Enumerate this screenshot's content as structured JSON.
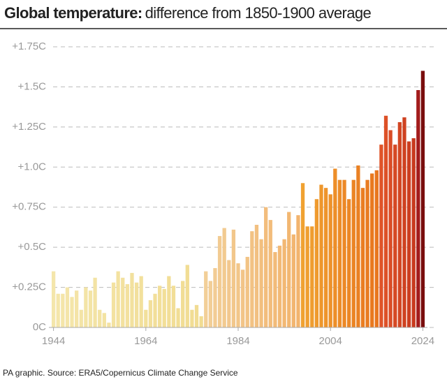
{
  "chart_data": {
    "type": "bar",
    "title": "Global temperature:",
    "subtitle": "difference from 1850-1900 average",
    "source": "PA graphic. Source: ERA5/Copernicus Climate Change Service",
    "x": [
      1944,
      1945,
      1946,
      1947,
      1948,
      1949,
      1950,
      1951,
      1952,
      1953,
      1954,
      1955,
      1956,
      1957,
      1958,
      1959,
      1960,
      1961,
      1962,
      1963,
      1964,
      1965,
      1966,
      1967,
      1968,
      1969,
      1970,
      1971,
      1972,
      1973,
      1974,
      1975,
      1976,
      1977,
      1978,
      1979,
      1980,
      1981,
      1982,
      1983,
      1984,
      1985,
      1986,
      1987,
      1988,
      1989,
      1990,
      1991,
      1992,
      1993,
      1994,
      1995,
      1996,
      1997,
      1998,
      1999,
      2000,
      2001,
      2002,
      2003,
      2004,
      2005,
      2006,
      2007,
      2008,
      2009,
      2010,
      2011,
      2012,
      2013,
      2014,
      2015,
      2016,
      2017,
      2018,
      2019,
      2020,
      2021,
      2022,
      2023,
      2024
    ],
    "values": [
      0.35,
      0.21,
      0.21,
      0.25,
      0.19,
      0.23,
      0.11,
      0.25,
      0.23,
      0.31,
      0.11,
      0.09,
      0.03,
      0.28,
      0.35,
      0.31,
      0.27,
      0.34,
      0.28,
      0.32,
      0.11,
      0.17,
      0.21,
      0.26,
      0.24,
      0.32,
      0.26,
      0.12,
      0.29,
      0.39,
      0.11,
      0.14,
      0.07,
      0.35,
      0.29,
      0.37,
      0.57,
      0.62,
      0.42,
      0.61,
      0.4,
      0.36,
      0.44,
      0.6,
      0.64,
      0.55,
      0.75,
      0.67,
      0.47,
      0.51,
      0.55,
      0.72,
      0.58,
      0.7,
      0.9,
      0.63,
      0.63,
      0.8,
      0.89,
      0.87,
      0.83,
      0.99,
      0.92,
      0.92,
      0.8,
      0.92,
      1.01,
      0.87,
      0.92,
      0.96,
      0.98,
      1.14,
      1.32,
      1.23,
      1.14,
      1.28,
      1.31,
      1.16,
      1.18,
      1.48,
      1.6
    ],
    "xlim": [
      1943,
      2025
    ],
    "xticks": [
      1944,
      1964,
      1984,
      2004,
      2024
    ],
    "ylim": [
      0,
      1.75
    ],
    "yticks": [
      {
        "value": 0,
        "label": "0C"
      },
      {
        "value": 0.25,
        "label": "+0.25C"
      },
      {
        "value": 0.5,
        "label": "+0.5C"
      },
      {
        "value": 0.75,
        "label": "+0.75C"
      },
      {
        "value": 1.0,
        "label": "+1.0C"
      },
      {
        "value": 1.25,
        "label": "+1.25C"
      },
      {
        "value": 1.5,
        "label": "+1.5C"
      },
      {
        "value": 1.75,
        "label": "+1.75C"
      }
    ],
    "grid": true,
    "color_stops": [
      {
        "x": 1944,
        "color": "#f4e6ab"
      },
      {
        "x": 1976,
        "color": "#f1dc92"
      },
      {
        "x": 1977,
        "color": "#f2cf98"
      },
      {
        "x": 1997,
        "color": "#f2b46e"
      },
      {
        "x": 1998,
        "color": "#f0a232"
      },
      {
        "x": 2014,
        "color": "#e8761e"
      },
      {
        "x": 2015,
        "color": "#e0552a"
      },
      {
        "x": 2022,
        "color": "#c83a1e"
      },
      {
        "x": 2023,
        "color": "#a31c1c"
      },
      {
        "x": 2024,
        "color": "#7a0e0e"
      }
    ]
  }
}
